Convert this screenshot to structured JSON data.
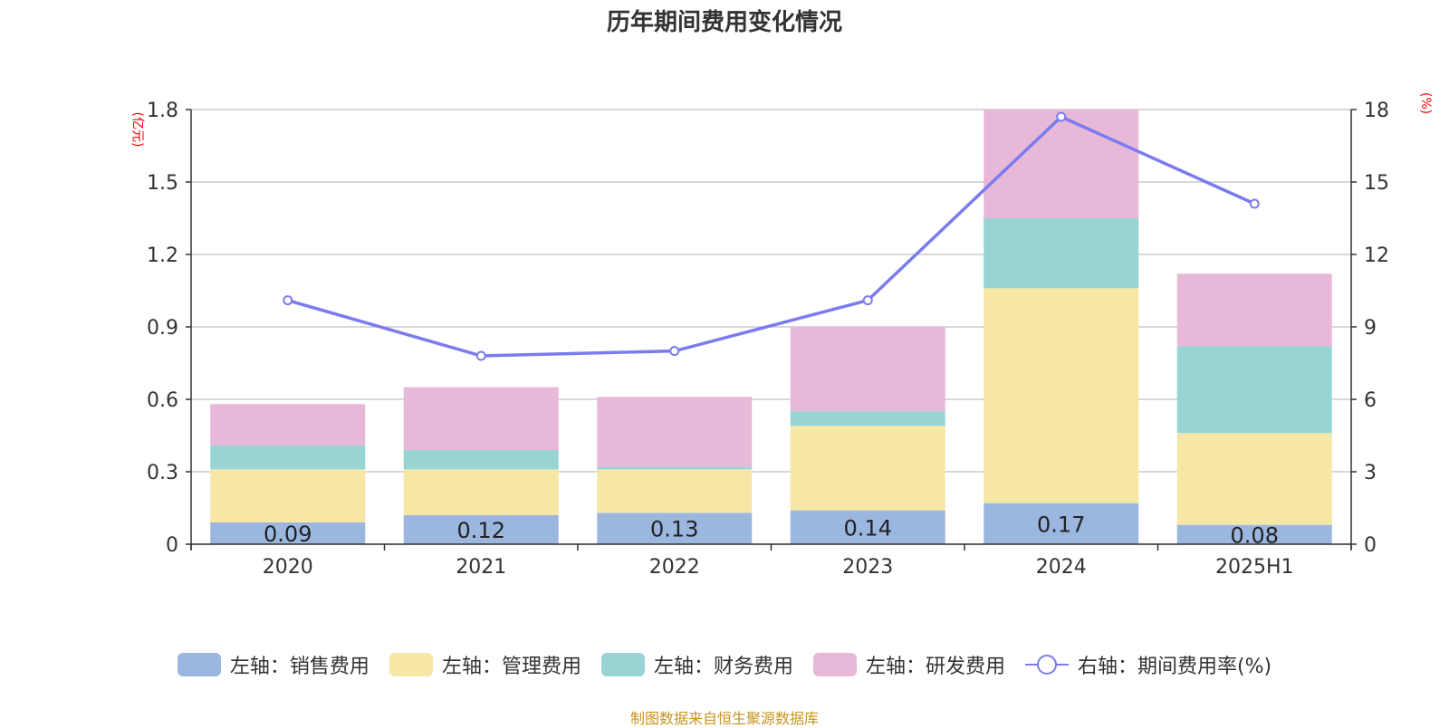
{
  "title": "历年期间费用变化情况",
  "source": "制图数据来自恒生聚源数据库",
  "chart_data": {
    "type": "bar",
    "stacked": true,
    "title": "历年期间费用变化情况",
    "categories": [
      "2020",
      "2021",
      "2022",
      "2023",
      "2024",
      "2025H1"
    ],
    "ylabel_left": "(亿元)",
    "ylabel_right": "(%)",
    "ylim_left": [
      0,
      1.8
    ],
    "yticks_left": [
      "0",
      "0.3",
      "0.6",
      "0.9",
      "1.2",
      "1.5",
      "1.8"
    ],
    "ylim_right": [
      0,
      18
    ],
    "yticks_right": [
      "0",
      "3",
      "6",
      "9",
      "12",
      "15",
      "18"
    ],
    "grid": true,
    "legend_position": "bottom",
    "series": [
      {
        "name": "左轴：销售费用",
        "axis": "left",
        "type": "bar",
        "color": "#9bb7e0",
        "values": [
          0.09,
          0.12,
          0.13,
          0.14,
          0.17,
          0.08
        ],
        "labels": [
          "0.09",
          "0.12",
          "0.13",
          "0.14",
          "0.17",
          "0.08"
        ]
      },
      {
        "name": "左轴：管理费用",
        "axis": "left",
        "type": "bar",
        "color": "#f7e7a6",
        "values": [
          0.22,
          0.19,
          0.18,
          0.35,
          0.89,
          0.38
        ]
      },
      {
        "name": "左轴：财务费用",
        "axis": "left",
        "type": "bar",
        "color": "#98d4d4",
        "values": [
          0.1,
          0.08,
          0.01,
          0.06,
          0.29,
          0.36
        ]
      },
      {
        "name": "左轴：研发费用",
        "axis": "left",
        "type": "bar",
        "color": "#e8b8d8",
        "values": [
          0.17,
          0.26,
          0.29,
          0.35,
          0.45,
          0.3
        ]
      },
      {
        "name": "右轴：期间费用率(%)",
        "axis": "right",
        "type": "line",
        "color": "#7b7bef",
        "values": [
          10.1,
          7.8,
          8.0,
          10.1,
          17.7,
          14.1
        ]
      }
    ]
  }
}
